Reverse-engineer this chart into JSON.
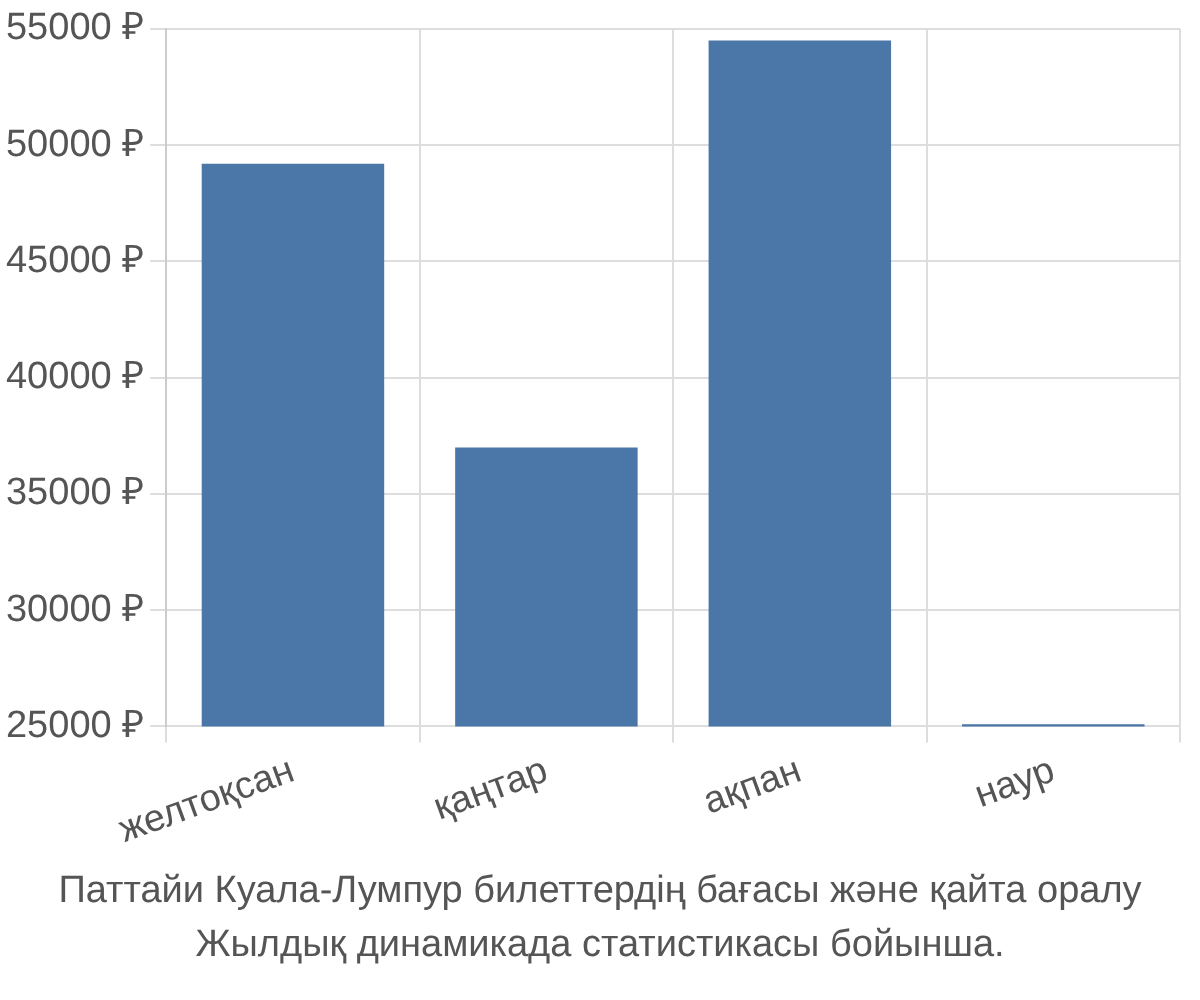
{
  "chart_data": {
    "type": "bar",
    "categories": [
      "желтоқсан",
      "қаңтар",
      "ақпан",
      "наур"
    ],
    "values": [
      49200,
      37000,
      54500,
      25100
    ],
    "color": "#4a76a8",
    "ylim": [
      25000,
      55000
    ],
    "yticks": [
      {
        "value": 25000,
        "label": "25000 ₽"
      },
      {
        "value": 30000,
        "label": "30000 ₽"
      },
      {
        "value": 35000,
        "label": "35000 ₽"
      },
      {
        "value": 40000,
        "label": "40000 ₽"
      },
      {
        "value": 45000,
        "label": "45000 ₽"
      },
      {
        "value": 50000,
        "label": "50000 ₽"
      },
      {
        "value": 55000,
        "label": "55000 ₽"
      }
    ],
    "grid": true,
    "annotations": [
      "Паттайи Куала-Лумпур билеттердің бағасы және қайта оралу",
      "Жылдық динамикада статистикасы бойынша."
    ]
  }
}
